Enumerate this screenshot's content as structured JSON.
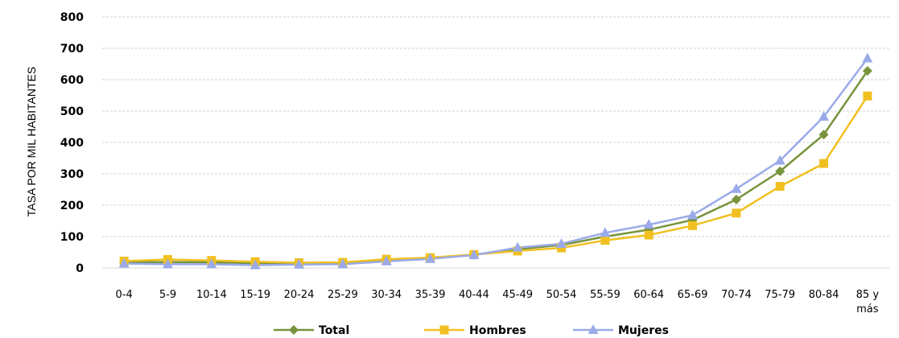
{
  "chart_data": {
    "type": "line",
    "title": "",
    "xlabel": "",
    "ylabel": "TASA POR MIL HABITANTES",
    "ylim": [
      0,
      800
    ],
    "yticks": [
      0,
      100,
      200,
      300,
      400,
      500,
      600,
      700,
      800
    ],
    "grid": true,
    "legend_position": "bottom",
    "categories": [
      "0-4",
      "5-9",
      "10-14",
      "15-19",
      "20-24",
      "25-29",
      "30-34",
      "35-39",
      "40-44",
      "45-49",
      "50-54",
      "55-59",
      "60-64",
      "65-69",
      "70-74",
      "75-79",
      "80-84",
      "85 y más"
    ],
    "series": [
      {
        "name": "Total",
        "color": "#77933c",
        "marker": "diamond",
        "values": [
          18,
          19,
          18,
          15,
          14,
          14,
          25,
          32,
          42,
          60,
          73,
          100,
          122,
          153,
          218,
          308,
          425,
          628
        ]
      },
      {
        "name": "Hombres",
        "color": "#f0c020",
        "marker": "square",
        "values": [
          22,
          27,
          24,
          20,
          17,
          18,
          28,
          33,
          43,
          54,
          64,
          88,
          105,
          135,
          175,
          260,
          333,
          548
        ]
      },
      {
        "name": "Mujeres",
        "color": "#9aaae8",
        "marker": "triangle",
        "values": [
          14,
          12,
          12,
          9,
          11,
          12,
          21,
          29,
          41,
          65,
          77,
          112,
          138,
          168,
          252,
          342,
          482,
          668
        ]
      }
    ]
  }
}
